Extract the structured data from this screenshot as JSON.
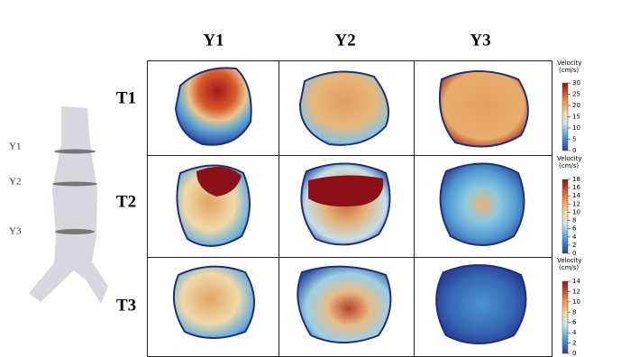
{
  "columns": [
    "Y1",
    "Y2",
    "Y3"
  ],
  "rows": [
    "T1",
    "T2",
    "T3"
  ],
  "vessel_labels": [
    "Y1",
    "Y2",
    "Y3"
  ],
  "colorbars": [
    {
      "title": "Velocity",
      "unit": "(cm/s)",
      "ticks": [
        0,
        5,
        10,
        15,
        20,
        25,
        30
      ]
    },
    {
      "title": "Velocity",
      "unit": "(cm/s)",
      "ticks": [
        0,
        2,
        4,
        6,
        8,
        10,
        12,
        14,
        16,
        18
      ]
    },
    {
      "title": "Velocity",
      "unit": "(cm/s)",
      "ticks": [
        0,
        2,
        4,
        6,
        8,
        10,
        12,
        14
      ]
    }
  ]
}
